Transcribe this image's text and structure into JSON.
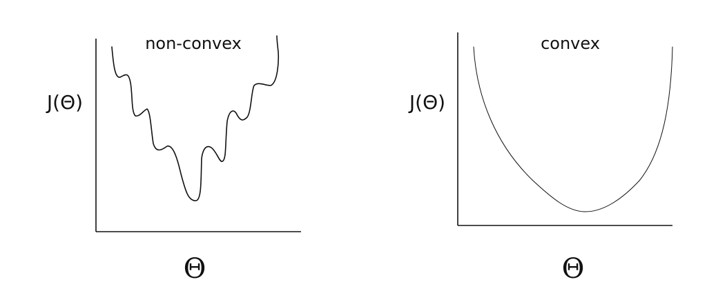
{
  "panels": {
    "left": {
      "title": "non-convex",
      "ylabel": "J(Θ)",
      "xlabel": "Θ",
      "shape": "non-convex"
    },
    "right": {
      "title": "convex",
      "ylabel": "J(Θ)",
      "xlabel": "Θ",
      "shape": "convex"
    }
  },
  "colors": {
    "line": "#111111",
    "background": "#ffffff"
  }
}
